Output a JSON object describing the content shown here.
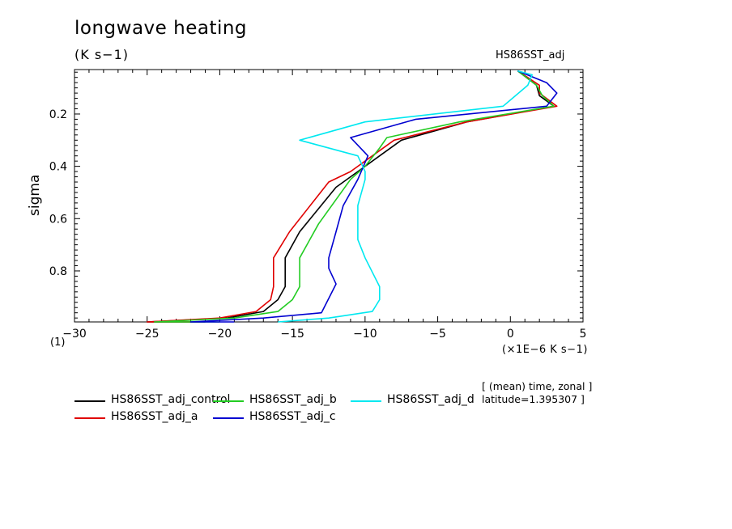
{
  "chart_data": {
    "type": "line",
    "title": "longwave heating",
    "units": "(K s−1)",
    "dataset": "HS86SST_adj",
    "xlabel": "(×1E−6 K s−1)",
    "ylabel": "sigma",
    "axis_multiplier_label": "(1)",
    "xlim": [
      -30,
      5
    ],
    "ylim": [
      0.03,
      0.995
    ],
    "y_inverted": true,
    "x_ticks": [
      -30,
      -25,
      -20,
      -15,
      -10,
      -5,
      0,
      5
    ],
    "y_ticks": [
      0.2,
      0.4,
      0.6,
      0.8
    ],
    "y_tick_labels": [
      "0.2",
      "0.4",
      "0.6",
      "0.8"
    ],
    "notes": [
      "[ (mean) time, zonal ]",
      "latitude=1.395307 ]"
    ],
    "series": [
      {
        "name": "HS86SST_adj_control",
        "color": "#000000",
        "x": [
          0.5,
          1.8,
          2.0,
          3.0,
          -3.0,
          -7.5,
          -9.0,
          -10.5,
          -12.0,
          -14.5,
          -15.5,
          -15.5,
          -16.0,
          -17.0,
          -19.5,
          -25.0,
          -21.0
        ],
        "y": [
          0.035,
          0.09,
          0.13,
          0.17,
          0.23,
          0.3,
          0.36,
          0.42,
          0.48,
          0.65,
          0.75,
          0.86,
          0.91,
          0.955,
          0.98,
          0.995,
          0.995
        ]
      },
      {
        "name": "HS86SST_adj_a",
        "color": "#e00000",
        "x": [
          0.5,
          2.0,
          2.0,
          3.2,
          -3.0,
          -8.0,
          -9.5,
          -11.0,
          -12.5,
          -15.2,
          -16.3,
          -16.3,
          -16.5,
          -17.5,
          -20.0,
          -25.0,
          -22.0
        ],
        "y": [
          0.035,
          0.09,
          0.12,
          0.17,
          0.23,
          0.3,
          0.36,
          0.42,
          0.46,
          0.65,
          0.75,
          0.86,
          0.91,
          0.955,
          0.98,
          0.995,
          0.995
        ]
      },
      {
        "name": "HS86SST_adj_b",
        "color": "#22cc22",
        "x": [
          0.5,
          1.8,
          2.2,
          3.0,
          -3.5,
          -8.5,
          -9.0,
          -10.0,
          -11.0,
          -13.2,
          -14.5,
          -14.5,
          -15.0,
          -16.0,
          -19.0,
          -24.5,
          -20.0
        ],
        "y": [
          0.035,
          0.09,
          0.13,
          0.17,
          0.23,
          0.29,
          0.33,
          0.4,
          0.45,
          0.62,
          0.75,
          0.86,
          0.91,
          0.955,
          0.98,
          0.995,
          0.995
        ]
      },
      {
        "name": "HS86SST_adj_c",
        "color": "#0000d0",
        "x": [
          0.5,
          2.5,
          3.2,
          2.5,
          -6.5,
          -11.0,
          -9.8,
          -10.5,
          -11.5,
          -12.0,
          -12.5,
          -12.5,
          -12.0,
          -13.0,
          -17.0,
          -22.0,
          -19.0
        ],
        "y": [
          0.035,
          0.08,
          0.12,
          0.17,
          0.22,
          0.29,
          0.36,
          0.45,
          0.55,
          0.65,
          0.75,
          0.79,
          0.85,
          0.96,
          0.98,
          0.995,
          0.995
        ]
      },
      {
        "name": "HS86SST_adj_d",
        "color": "#00e8f0",
        "x": [
          0.5,
          1.5,
          1.2,
          -0.5,
          -10.0,
          -14.5,
          -10.5,
          -10.0,
          -10.0,
          -10.5,
          -10.5,
          -10.0,
          -9.0,
          -9.0,
          -9.5,
          -12.5,
          -16.0
        ],
        "y": [
          0.035,
          0.05,
          0.09,
          0.17,
          0.23,
          0.3,
          0.36,
          0.42,
          0.45,
          0.55,
          0.68,
          0.75,
          0.86,
          0.91,
          0.955,
          0.98,
          0.995
        ]
      }
    ]
  },
  "legend": [
    {
      "label": "HS86SST_adj_control",
      "color": "#000000"
    },
    {
      "label": "HS86SST_adj_a",
      "color": "#e00000"
    },
    {
      "label": "HS86SST_adj_b",
      "color": "#22cc22"
    },
    {
      "label": "HS86SST_adj_c",
      "color": "#0000d0"
    },
    {
      "label": "HS86SST_adj_d",
      "color": "#00e8f0"
    }
  ]
}
